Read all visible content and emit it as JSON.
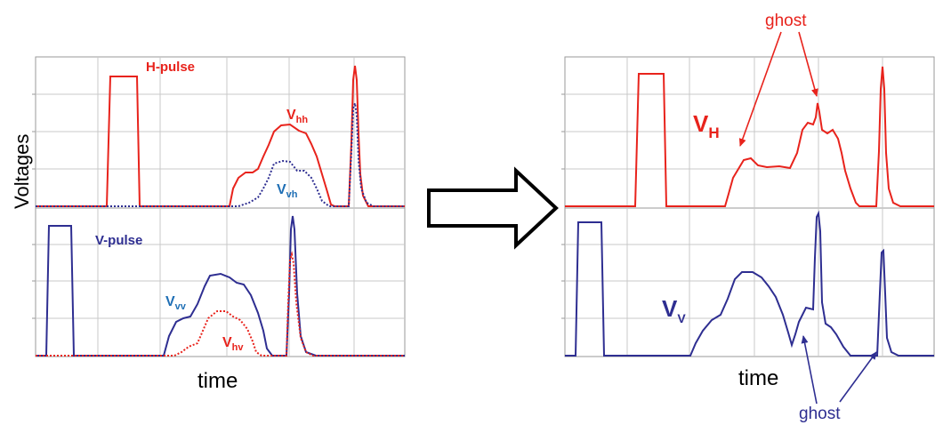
{
  "colors": {
    "red": "#e8231c",
    "blue": "#2e2e91",
    "cyan": "#1f6fb5",
    "grid": "#c8c8c8",
    "axis": "#9a9a9a",
    "black": "#000000"
  },
  "left_panel": {
    "ylabel": "Voltages",
    "xlabel": "time",
    "h_pulse_label": "H-pulse",
    "v_pulse_label": "V-pulse",
    "vhh": {
      "main": "V",
      "sub": "hh"
    },
    "vvh": {
      "main": "V",
      "sub": "vh"
    },
    "vvv": {
      "main": "V",
      "sub": "vv"
    },
    "vhv": {
      "main": "V",
      "sub": "hv"
    }
  },
  "right_panel": {
    "xlabel": "time",
    "vh": {
      "main": "V",
      "sub": "H"
    },
    "vv": {
      "main": "V",
      "sub": "V"
    },
    "ghost_top": "ghost",
    "ghost_bottom": "ghost"
  },
  "arrow": {
    "icon": "right-arrow-icon"
  }
}
